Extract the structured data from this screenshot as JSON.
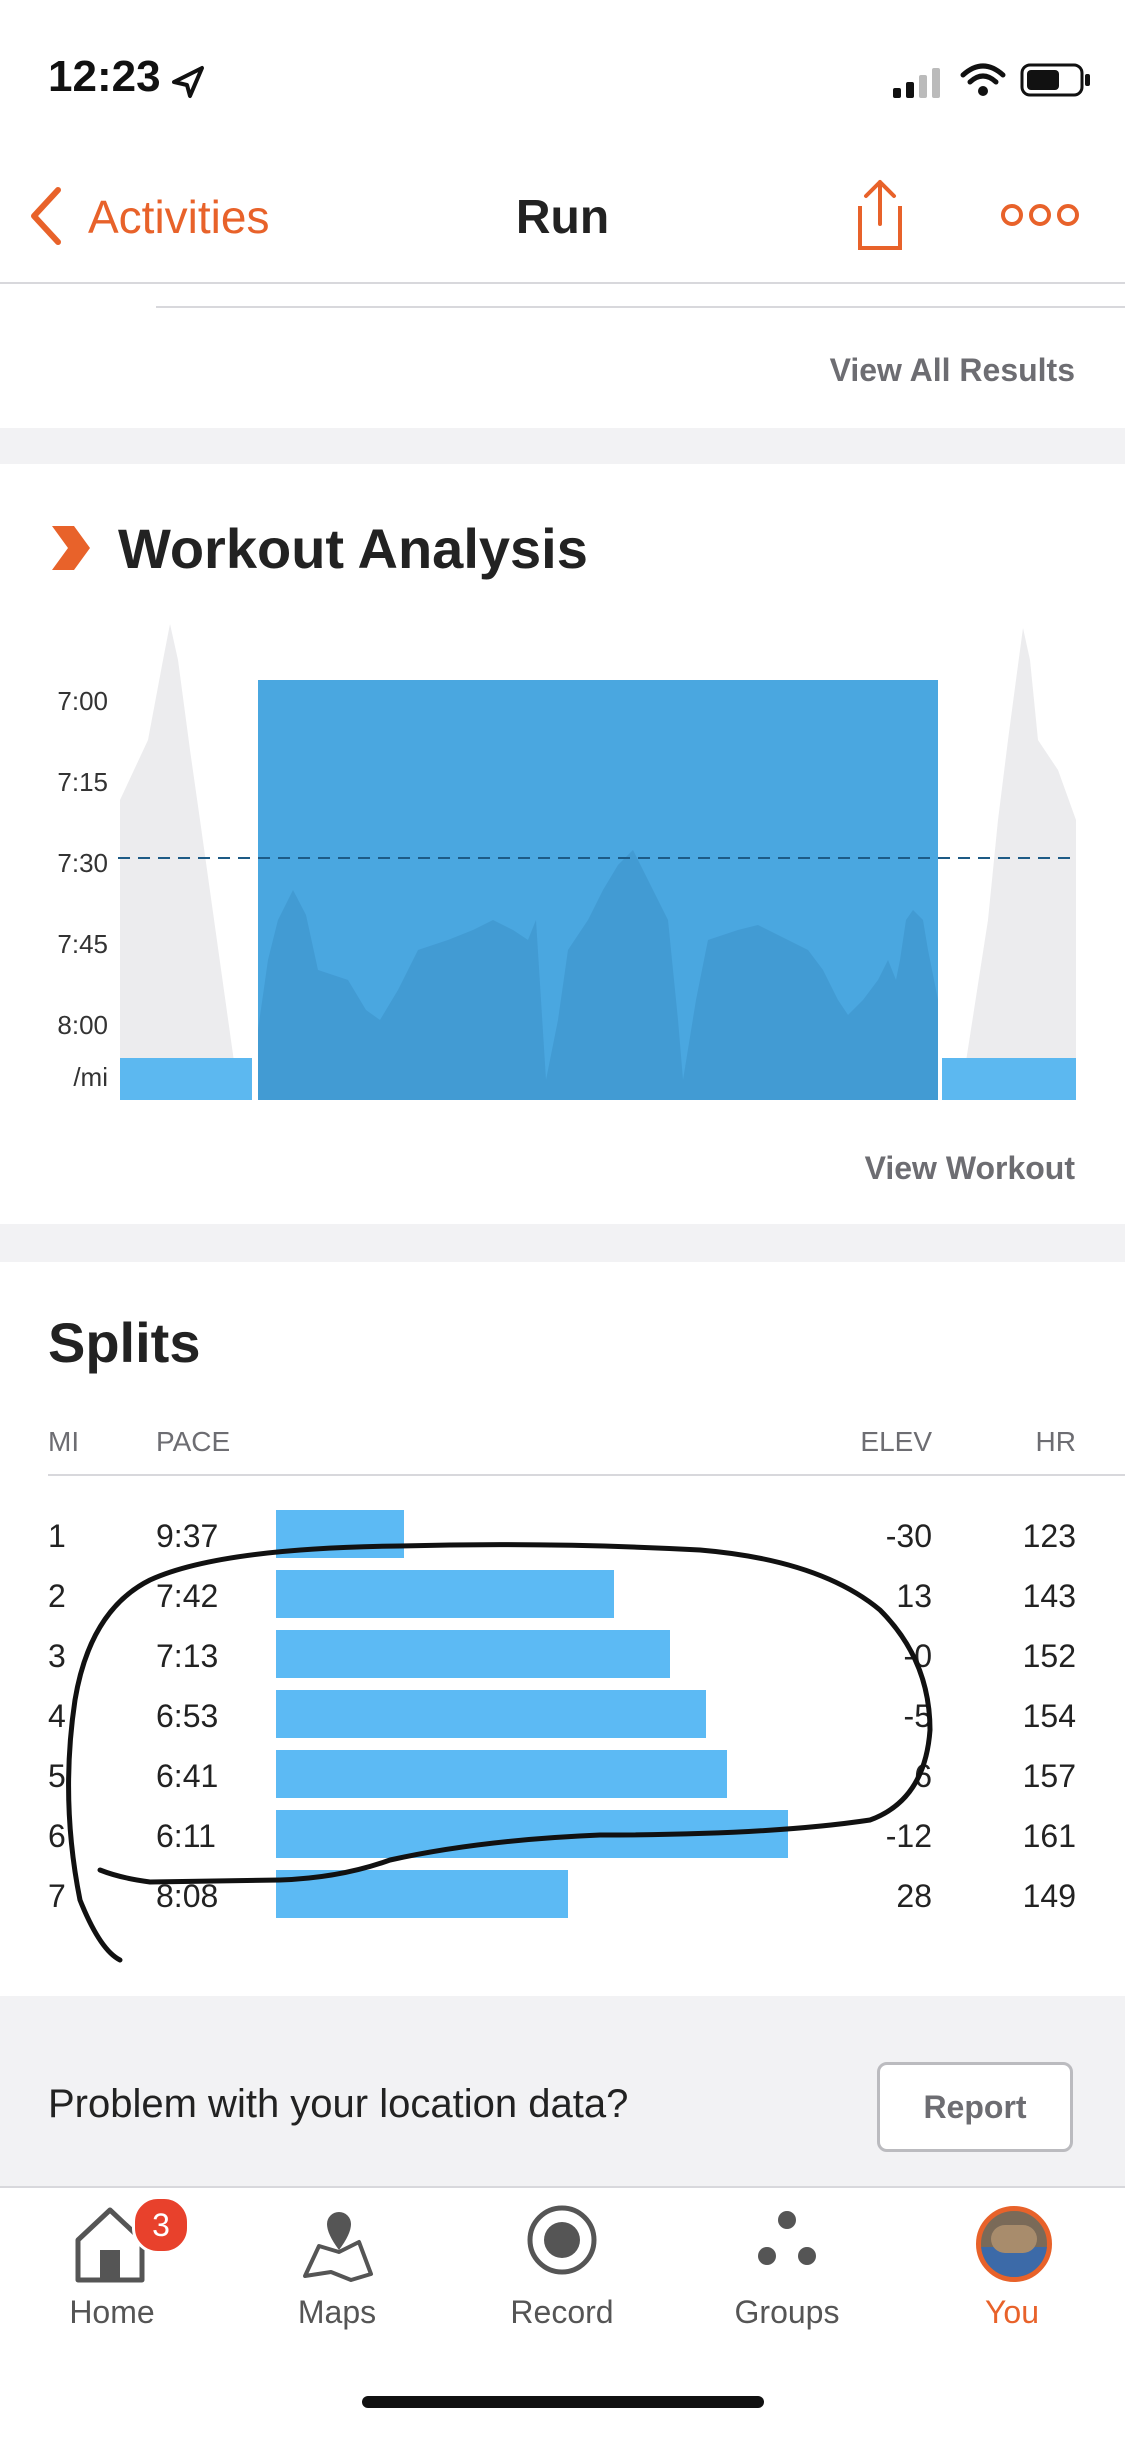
{
  "status_bar": {
    "time": "12:23"
  },
  "nav": {
    "back_label": "Activities",
    "title": "Run"
  },
  "results": {
    "view_all": "View All Results"
  },
  "workout": {
    "title": "Workout Analysis",
    "y_ticks": [
      "7:00",
      "7:15",
      "7:30",
      "7:45",
      "8:00"
    ],
    "y_unit": "/mi",
    "view_workout": "View Workout",
    "colors": {
      "interval": "#4aa7e0",
      "recovery": "#5cb8f0",
      "pace_line": "#1d5b86"
    }
  },
  "splits": {
    "title": "Splits",
    "headers": {
      "mi": "MI",
      "pace": "PACE",
      "elev": "ELEV",
      "hr": "HR"
    },
    "rows": [
      {
        "mi": "1",
        "pace": "9:37",
        "bar": 0.25,
        "elev": "-30",
        "hr": "123"
      },
      {
        "mi": "2",
        "pace": "7:42",
        "bar": 0.66,
        "elev": "13",
        "hr": "143"
      },
      {
        "mi": "3",
        "pace": "7:13",
        "bar": 0.77,
        "elev": "-0",
        "hr": "152"
      },
      {
        "mi": "4",
        "pace": "6:53",
        "bar": 0.84,
        "elev": "-5",
        "hr": "154"
      },
      {
        "mi": "5",
        "pace": "6:41",
        "bar": 0.88,
        "elev": "6",
        "hr": "157"
      },
      {
        "mi": "6",
        "pace": "6:11",
        "bar": 1.0,
        "elev": "-12",
        "hr": "161"
      },
      {
        "mi": "7",
        "pace": "8:08",
        "bar": 0.57,
        "elev": "28",
        "hr": "149"
      }
    ]
  },
  "report": {
    "question": "Problem with your location data?",
    "button": "Report"
  },
  "tabs": [
    {
      "label": "Home",
      "badge": "3",
      "active": false
    },
    {
      "label": "Maps",
      "active": false
    },
    {
      "label": "Record",
      "active": false
    },
    {
      "label": "Groups",
      "active": false
    },
    {
      "label": "You",
      "active": true
    }
  ],
  "accent": "#e8622a"
}
